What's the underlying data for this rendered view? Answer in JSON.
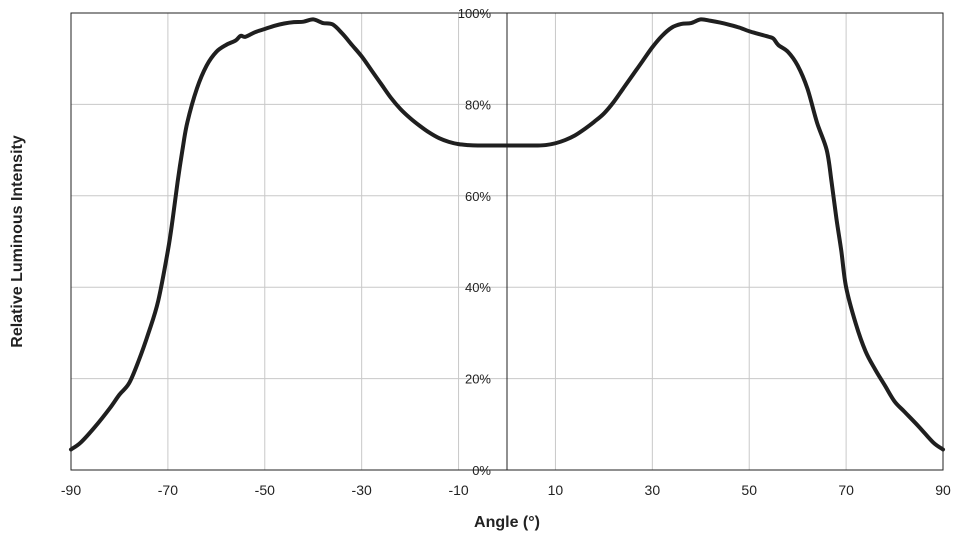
{
  "chart_data": {
    "type": "line",
    "title": "",
    "xlabel": "Angle (°)",
    "ylabel": "Relative Luminous Intensity",
    "xlim": [
      -90,
      90
    ],
    "ylim": [
      0,
      100
    ],
    "x_ticks": [
      -90,
      -70,
      -50,
      -30,
      -10,
      10,
      30,
      50,
      70,
      90
    ],
    "x_tick_labels": [
      "-90",
      "-70",
      "-50",
      "-30",
      "-10",
      "10",
      "30",
      "50",
      "70",
      "90"
    ],
    "y_ticks": [
      0,
      20,
      40,
      60,
      80,
      100
    ],
    "y_tick_labels": [
      "0%",
      "20%",
      "40%",
      "60%",
      "80%",
      "100%"
    ],
    "grid": true,
    "legend": "none",
    "series": [
      {
        "color": "#1f1f1f",
        "x": [
          -90,
          -88,
          -85,
          -82,
          -80,
          -78,
          -76,
          -74,
          -72,
          -70,
          -69,
          -68,
          -67,
          -66,
          -64,
          -62,
          -60,
          -58,
          -56,
          -55,
          -54,
          -52,
          -50,
          -48,
          -46,
          -44,
          -42,
          -40,
          -38,
          -36,
          -34,
          -32,
          -30,
          -28,
          -26,
          -24,
          -22,
          -20,
          -18,
          -16,
          -14,
          -12,
          -10,
          -8,
          -6,
          -4,
          -2,
          0,
          2,
          4,
          6,
          8,
          10,
          12,
          14,
          16,
          18,
          20,
          22,
          24,
          26,
          28,
          30,
          32,
          34,
          36,
          38,
          40,
          42,
          44,
          46,
          48,
          50,
          52,
          54,
          55,
          56,
          58,
          60,
          62,
          64,
          66,
          67,
          68,
          69,
          70,
          72,
          74,
          76,
          78,
          80,
          82,
          85,
          88,
          90
        ],
        "y": [
          4.5,
          6,
          9.5,
          13.5,
          16.5,
          19,
          24,
          30,
          37,
          48,
          55,
          63,
          70,
          76,
          83.5,
          88.5,
          91.5,
          93,
          94,
          95,
          94.8,
          95.8,
          96.5,
          97.2,
          97.7,
          98,
          98.1,
          98.6,
          97.8,
          97.5,
          95.5,
          93,
          90.5,
          87.5,
          84.5,
          81.5,
          79,
          77,
          75.3,
          73.8,
          72.6,
          71.8,
          71.3,
          71.1,
          71.0,
          71.0,
          71.0,
          71.0,
          71.0,
          71.0,
          71.0,
          71.1,
          71.5,
          72.2,
          73.2,
          74.6,
          76.2,
          78,
          80.5,
          83.5,
          86.5,
          89.5,
          92.5,
          95,
          96.8,
          97.6,
          97.8,
          98.6,
          98.3,
          97.9,
          97.4,
          96.8,
          96,
          95.4,
          94.8,
          94.4,
          93,
          91.5,
          88.5,
          83.5,
          76,
          70,
          63,
          55,
          48,
          40,
          32,
          26,
          22,
          18.5,
          15,
          12.8,
          9.5,
          6,
          4.5
        ]
      }
    ]
  }
}
